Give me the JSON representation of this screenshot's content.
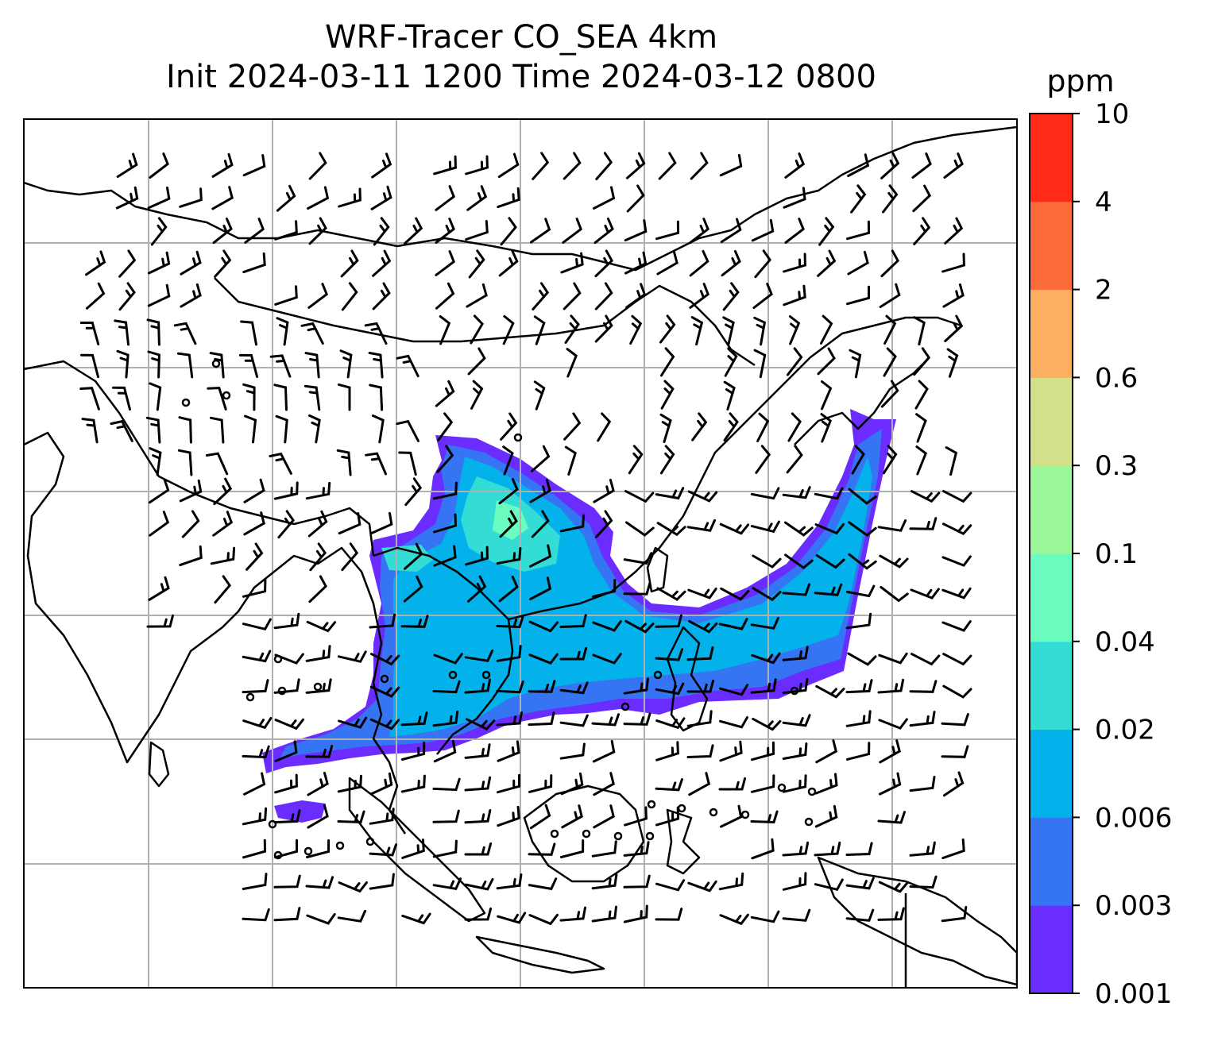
{
  "figure": {
    "title_line1": "WRF-Tracer CO_SEA 4km",
    "title_line2": "Init 2024-03-11 1200 Time 2024-03-12 0800"
  },
  "colorbar": {
    "unit": "ppm",
    "ticks": [
      "0.001",
      "0.003",
      "0.006",
      "0.02",
      "0.04",
      "0.1",
      "0.3",
      "0.6",
      "2",
      "4",
      "10"
    ],
    "colors": [
      "#6a2cff",
      "#3575f3",
      "#03b1eb",
      "#34dcd6",
      "#6bfcc0",
      "#9bf89a",
      "#d2e189",
      "#fdaf61",
      "#fc6c3a",
      "#ff2a17"
    ]
  },
  "map": {
    "grid": "on",
    "field": "CO_SEA tracer concentration",
    "overlay": "wind barbs",
    "colors": {
      "coastline": "#000000",
      "gridline": "#b0b0b0",
      "barb": "#000000"
    }
  }
}
